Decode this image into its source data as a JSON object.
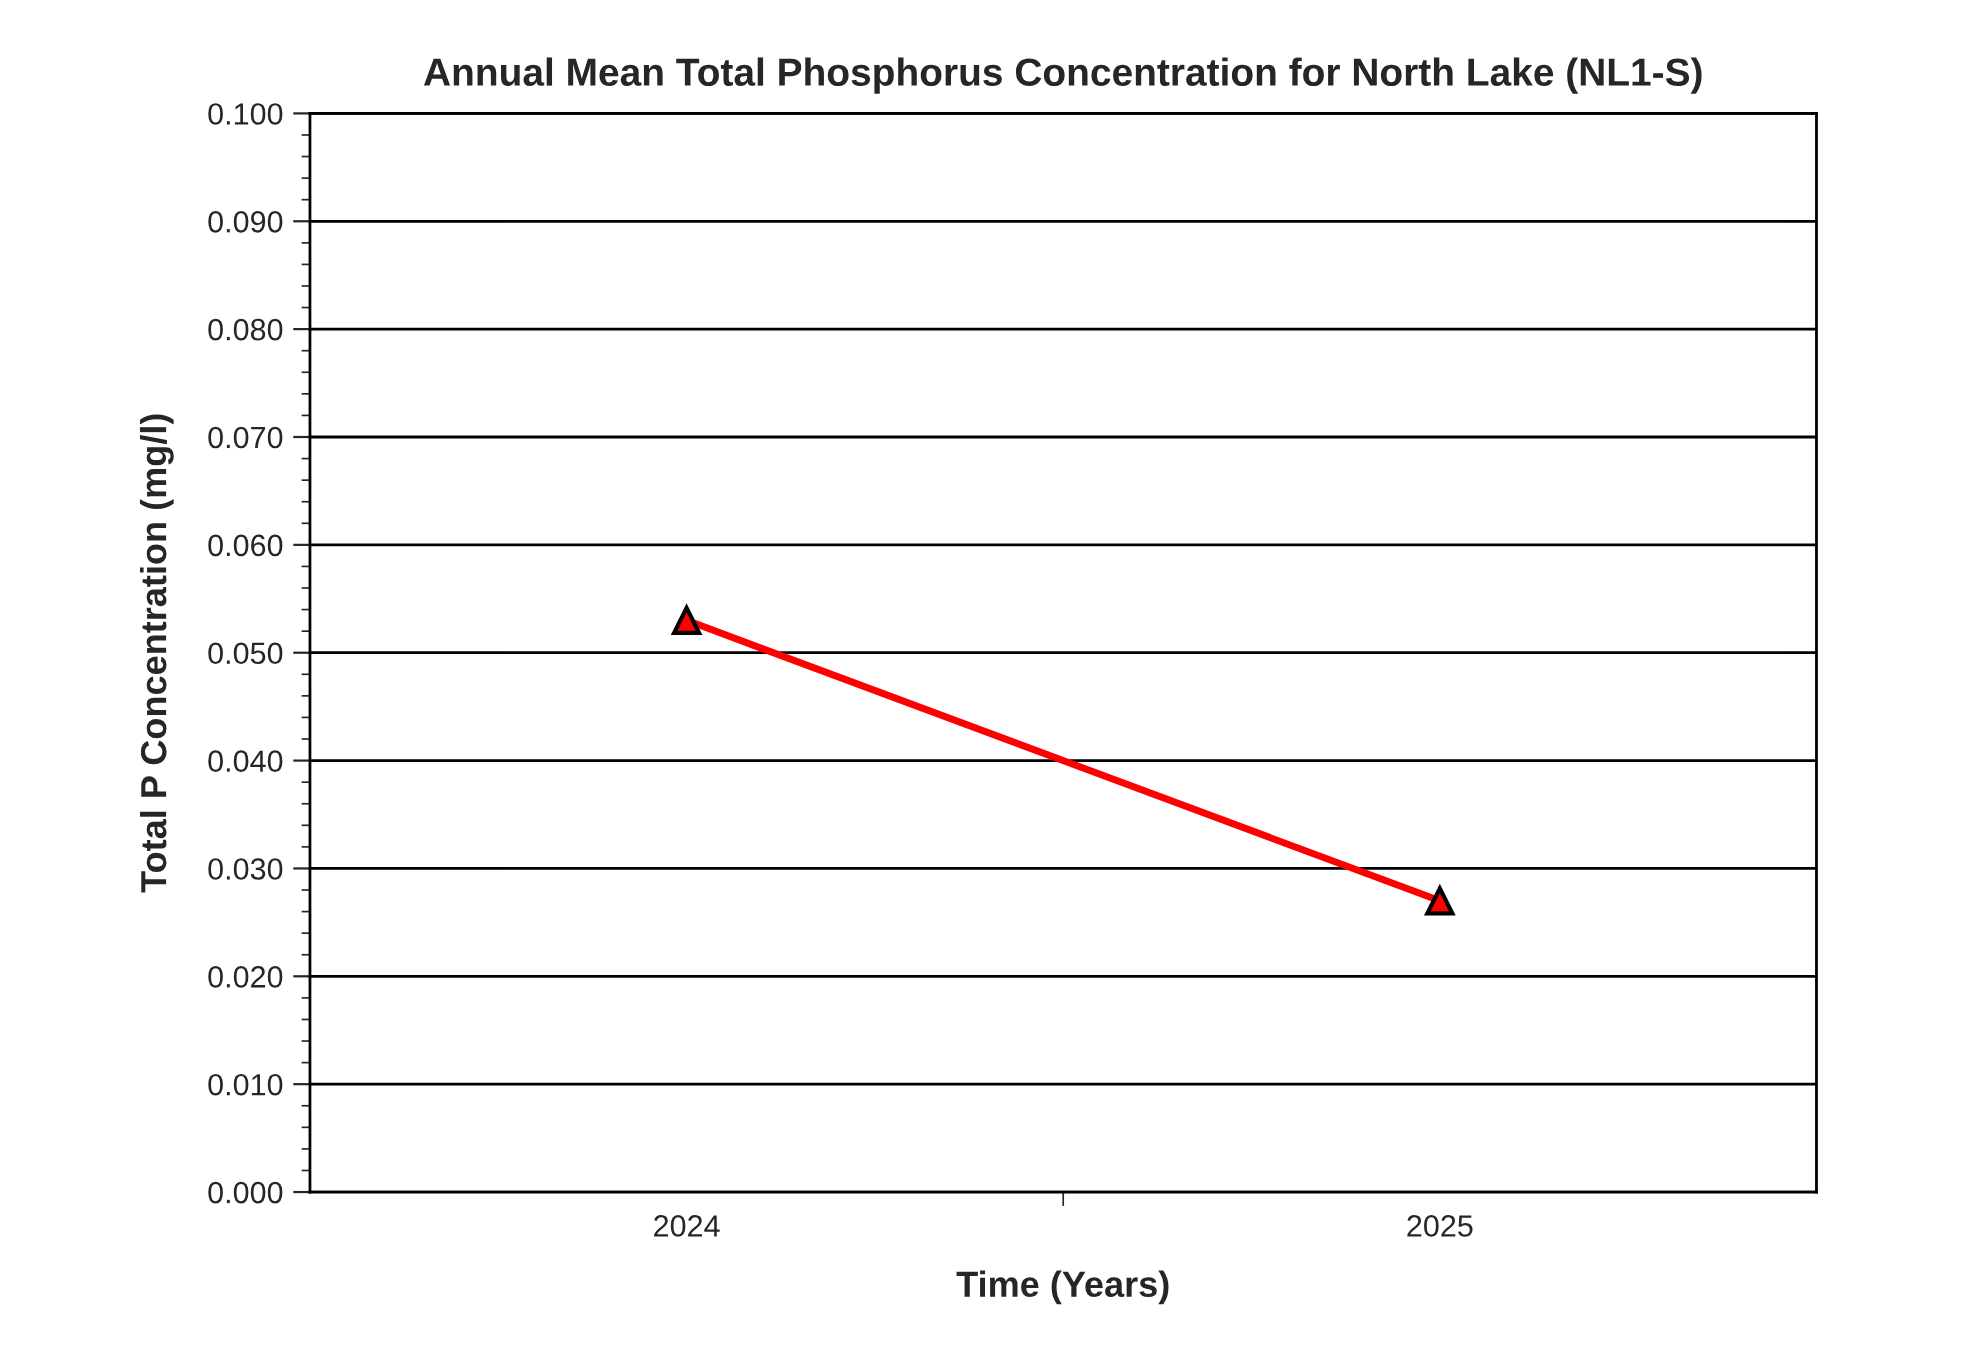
{
  "chart_data": {
    "type": "line",
    "title": "Annual Mean Total Phosphorus Concentration for North Lake (NL1-S)",
    "xlabel": "Time (Years)",
    "ylabel": "Total P Concentration (mg/l)",
    "categories": [
      "2024",
      "2025"
    ],
    "series": [
      {
        "color": "#ff0000",
        "values": [
          0.053,
          0.027
        ]
      }
    ],
    "ylim": [
      0,
      0.1
    ],
    "yticks": [
      {
        "value": 0,
        "label": "0.000"
      },
      {
        "value": 0.01,
        "label": "0.010"
      },
      {
        "value": 0.02,
        "label": "0.020"
      },
      {
        "value": 0.03,
        "label": "0.030"
      },
      {
        "value": 0.04,
        "label": "0.040"
      },
      {
        "value": 0.05,
        "label": "0.050"
      },
      {
        "value": 0.06,
        "label": "0.060"
      },
      {
        "value": 0.07,
        "label": "0.070"
      },
      {
        "value": 0.08,
        "label": "0.080"
      },
      {
        "value": 0.09,
        "label": "0.090"
      },
      {
        "value": 0.1,
        "label": "0.100"
      }
    ],
    "grid": "y",
    "marker": "triangle",
    "line_style": "solid",
    "legend": false
  }
}
